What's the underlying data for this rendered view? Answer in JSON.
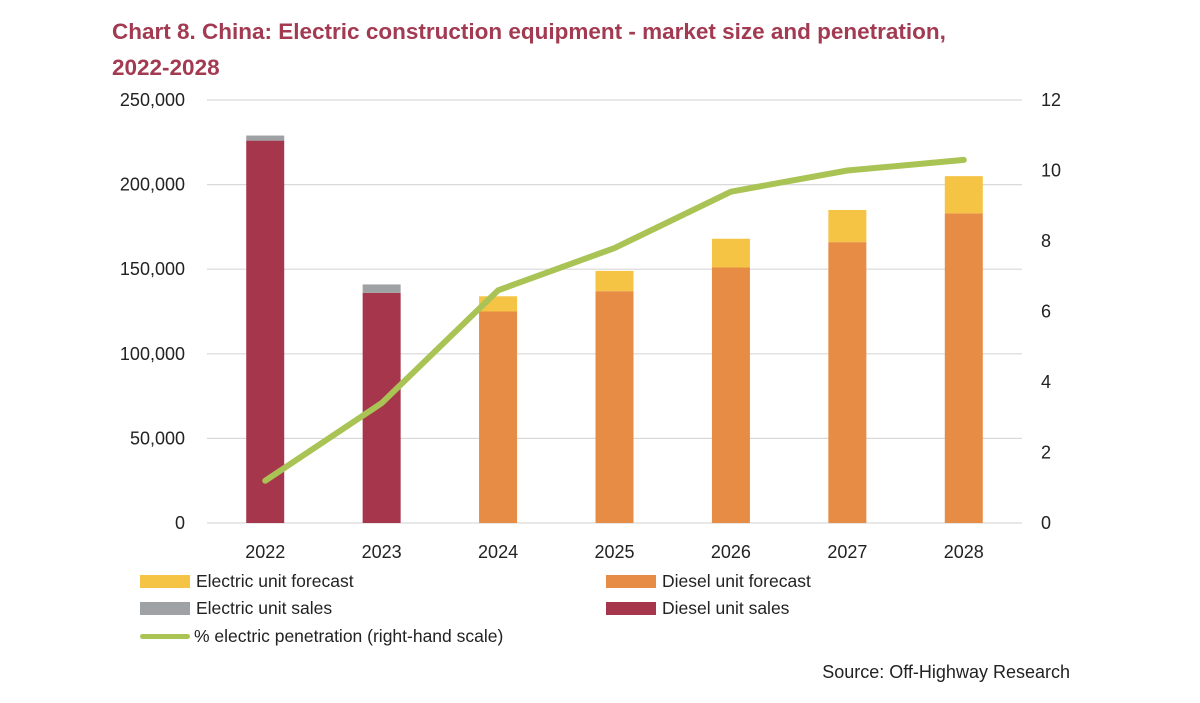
{
  "title_line1": "Chart 8. China: Electric construction equipment - market size and penetration,",
  "title_line2": "2022-2028",
  "source": "Source: Off-Highway Research",
  "colors": {
    "electric_forecast": "#f5c445",
    "diesel_forecast": "#e68c44",
    "electric_sales": "#9fa2a4",
    "diesel_sales": "#a6364b",
    "penetration_line": "#a9c355",
    "title": "#a23a52",
    "gridline": "#d9d9d9"
  },
  "legend": {
    "electric_forecast": "Electric unit forecast",
    "diesel_forecast": "Diesel unit forecast",
    "electric_sales": "Electric unit sales",
    "diesel_sales": "Diesel unit sales",
    "penetration": "% electric penetration (right-hand scale)"
  },
  "chart_data": {
    "type": "bar",
    "stacked": true,
    "categories": [
      "2022",
      "2023",
      "2024",
      "2025",
      "2026",
      "2027",
      "2028"
    ],
    "series": [
      {
        "name": "Diesel unit sales",
        "axis": "left",
        "values": [
          226000,
          136000,
          0,
          0,
          0,
          0,
          0
        ]
      },
      {
        "name": "Electric unit sales",
        "axis": "left",
        "values": [
          3000,
          5000,
          0,
          0,
          0,
          0,
          0
        ]
      },
      {
        "name": "Diesel unit forecast",
        "axis": "left",
        "values": [
          0,
          0,
          125000,
          137000,
          151000,
          166000,
          183000
        ]
      },
      {
        "name": "Electric unit forecast",
        "axis": "left",
        "values": [
          0,
          0,
          9000,
          12000,
          17000,
          19000,
          22000
        ]
      },
      {
        "name": "% electric penetration (right-hand scale)",
        "type": "line",
        "axis": "right",
        "values": [
          1.2,
          3.4,
          6.6,
          7.8,
          9.4,
          10.0,
          10.3
        ]
      }
    ],
    "y_left": {
      "min": 0,
      "max": 250000,
      "ticks": [
        "0",
        "50,000",
        "100,000",
        "150,000",
        "200,000",
        "250,000"
      ]
    },
    "y_right": {
      "min": 0,
      "max": 12,
      "ticks": [
        "0",
        "2",
        "4",
        "6",
        "8",
        "10",
        "12"
      ]
    },
    "grid": true,
    "legend_position": "bottom"
  }
}
